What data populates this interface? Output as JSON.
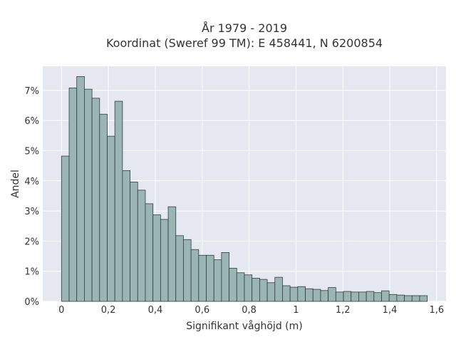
{
  "chart_data": {
    "type": "bar",
    "title": "År 1979 - 2019",
    "subtitle": "Koordinat (Sweref 99 TM): E 458441, N 6200854",
    "xlabel": "Signifikant våghöjd (m)",
    "ylabel": "Andel",
    "xlim": [
      -0.08,
      1.64
    ],
    "ylim": [
      0,
      0.078
    ],
    "grid": true,
    "bin_width": 0.0325,
    "x_ticks": [
      {
        "value": 0,
        "label": "0"
      },
      {
        "value": 0.2,
        "label": "0,2"
      },
      {
        "value": 0.4,
        "label": "0,4"
      },
      {
        "value": 0.6,
        "label": "0,6"
      },
      {
        "value": 0.8,
        "label": "0,8"
      },
      {
        "value": 1.0,
        "label": "1"
      },
      {
        "value": 1.2,
        "label": "1,2"
      },
      {
        "value": 1.4,
        "label": "1,4"
      },
      {
        "value": 1.6,
        "label": "1,6"
      }
    ],
    "y_ticks": [
      {
        "value": 0,
        "label": "0%"
      },
      {
        "value": 0.01,
        "label": "1%"
      },
      {
        "value": 0.02,
        "label": "2%"
      },
      {
        "value": 0.03,
        "label": "3%"
      },
      {
        "value": 0.04,
        "label": "4%"
      },
      {
        "value": 0.05,
        "label": "5%"
      },
      {
        "value": 0.06,
        "label": "6%"
      },
      {
        "value": 0.07,
        "label": "7%"
      }
    ],
    "x": [
      0.0,
      0.0325,
      0.065,
      0.0975,
      0.13,
      0.1625,
      0.195,
      0.2275,
      0.26,
      0.2925,
      0.325,
      0.3575,
      0.39,
      0.4225,
      0.455,
      0.4875,
      0.52,
      0.5525,
      0.585,
      0.6175,
      0.65,
      0.6825,
      0.715,
      0.7475,
      0.78,
      0.8125,
      0.845,
      0.8775,
      0.91,
      0.9425,
      0.975,
      1.0075,
      1.04,
      1.0725,
      1.105,
      1.1375,
      1.17,
      1.2025,
      1.235,
      1.2675,
      1.3,
      1.3325,
      1.365,
      1.3975,
      1.43,
      1.4625,
      1.495,
      1.5275
    ],
    "values": [
      0.0482,
      0.0708,
      0.0746,
      0.0704,
      0.0674,
      0.0621,
      0.0548,
      0.0664,
      0.0434,
      0.0396,
      0.0369,
      0.0324,
      0.0287,
      0.0272,
      0.0314,
      0.0218,
      0.0205,
      0.0172,
      0.0153,
      0.0153,
      0.0138,
      0.0162,
      0.011,
      0.0095,
      0.0088,
      0.0077,
      0.0073,
      0.0062,
      0.008,
      0.0052,
      0.0047,
      0.0049,
      0.0042,
      0.004,
      0.0036,
      0.0046,
      0.0031,
      0.0033,
      0.0031,
      0.0031,
      0.0033,
      0.0029,
      0.0035,
      0.0023,
      0.0021,
      0.0019,
      0.0019,
      0.0019
    ]
  }
}
